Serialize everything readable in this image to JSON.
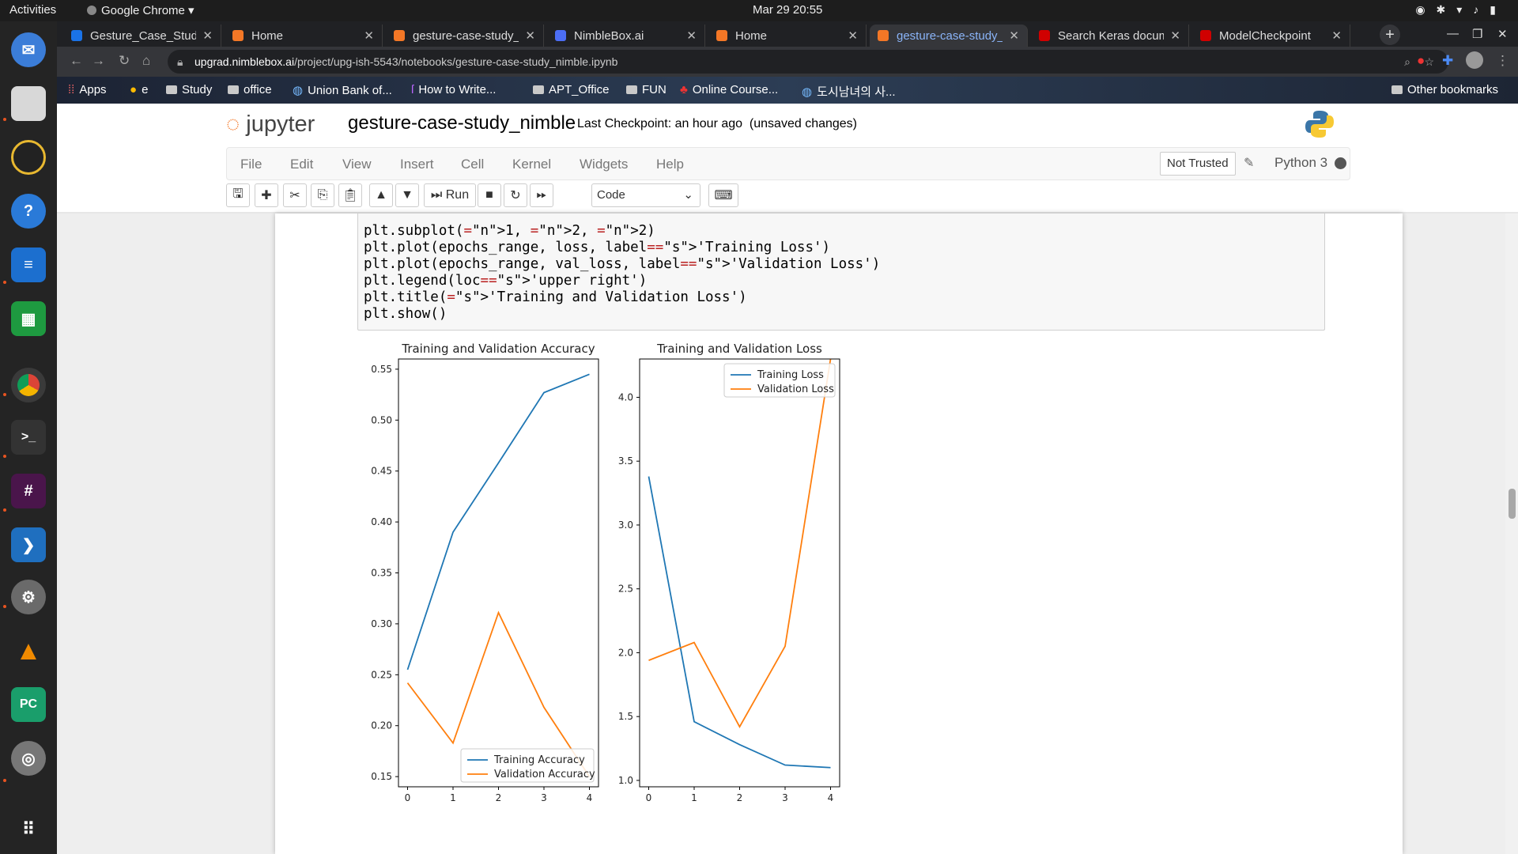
{
  "system": {
    "activities": "Activities",
    "app_name": "Google Chrome ▾",
    "clock": "Mar 29  20:55"
  },
  "tabs": [
    {
      "title": "Gesture_Case_Study",
      "fav_color": "#1a73e8",
      "active": false
    },
    {
      "title": "Home",
      "fav_color": "#f37726",
      "active": false
    },
    {
      "title": "gesture-case-study_",
      "fav_color": "#f37726",
      "active": false
    },
    {
      "title": "NimbleBox.ai",
      "fav_color": "#4c6ef5",
      "active": false
    },
    {
      "title": "Home",
      "fav_color": "#f37726",
      "active": false
    },
    {
      "title": "gesture-case-study_",
      "fav_color": "#f37726",
      "active": true
    },
    {
      "title": "Search Keras docume",
      "fav_color": "#d00000",
      "active": false
    },
    {
      "title": "ModelCheckpoint",
      "fav_color": "#d00000",
      "active": false
    }
  ],
  "address": {
    "domain": "upgrad.nimblebox.ai",
    "path": "/project/upg-ish-5543/notebooks/gesture-case-study_nimble.ipynb"
  },
  "bookmarks": [
    {
      "label": "Apps"
    },
    {
      "label": "e"
    },
    {
      "label": "Study"
    },
    {
      "label": "office"
    },
    {
      "label": "Union Bank of..."
    },
    {
      "label": "How to Write..."
    },
    {
      "label": "APT_Office"
    },
    {
      "label": "FUN"
    },
    {
      "label": "Online Course..."
    },
    {
      "label": "도시남녀의 사..."
    },
    {
      "label": "Other bookmarks"
    }
  ],
  "jupyter": {
    "logo_text": "jupyter",
    "notebook_name": "gesture-case-study_nimble",
    "checkpoint": "Last Checkpoint: an hour ago",
    "unsaved": "(unsaved changes)",
    "menus": [
      "File",
      "Edit",
      "View",
      "Insert",
      "Cell",
      "Kernel",
      "Widgets",
      "Help"
    ],
    "trusted": "Not Trusted",
    "kernel": "Python 3",
    "run_label": "Run",
    "cell_type": "Code"
  },
  "code_lines": [
    "plt.subplot(1, 2, 2)",
    "plt.plot(epochs_range, loss, label='Training Loss')",
    "plt.plot(epochs_range, val_loss, label='Validation Loss')",
    "plt.legend(loc='upper right')",
    "plt.title('Training and Validation Loss')",
    "plt.show()"
  ],
  "chart_data": [
    {
      "type": "line",
      "title": "Training and Validation Accuracy",
      "x": [
        0,
        1,
        2,
        3,
        4
      ],
      "ylim": [
        0.14,
        0.56
      ],
      "yticks": [
        0.15,
        0.2,
        0.25,
        0.3,
        0.35,
        0.4,
        0.45,
        0.5,
        0.55
      ],
      "legend_loc": "lower right",
      "series": [
        {
          "name": "Training Accuracy",
          "color": "#1f77b4",
          "values": [
            0.255,
            0.39,
            0.458,
            0.527,
            0.545
          ]
        },
        {
          "name": "Validation Accuracy",
          "color": "#ff7f0e",
          "values": [
            0.242,
            0.183,
            0.311,
            0.218,
            0.15
          ]
        }
      ]
    },
    {
      "type": "line",
      "title": "Training and Validation Loss",
      "x": [
        0,
        1,
        2,
        3,
        4
      ],
      "ylim": [
        0.95,
        4.3
      ],
      "yticks": [
        1.0,
        1.5,
        2.0,
        2.5,
        3.0,
        3.5,
        4.0
      ],
      "legend_loc": "upper right",
      "series": [
        {
          "name": "Training Loss",
          "color": "#1f77b4",
          "values": [
            3.38,
            1.46,
            1.28,
            1.12,
            1.1
          ]
        },
        {
          "name": "Validation Loss",
          "color": "#ff7f0e",
          "values": [
            1.94,
            2.08,
            1.42,
            2.05,
            4.3
          ]
        }
      ]
    }
  ]
}
